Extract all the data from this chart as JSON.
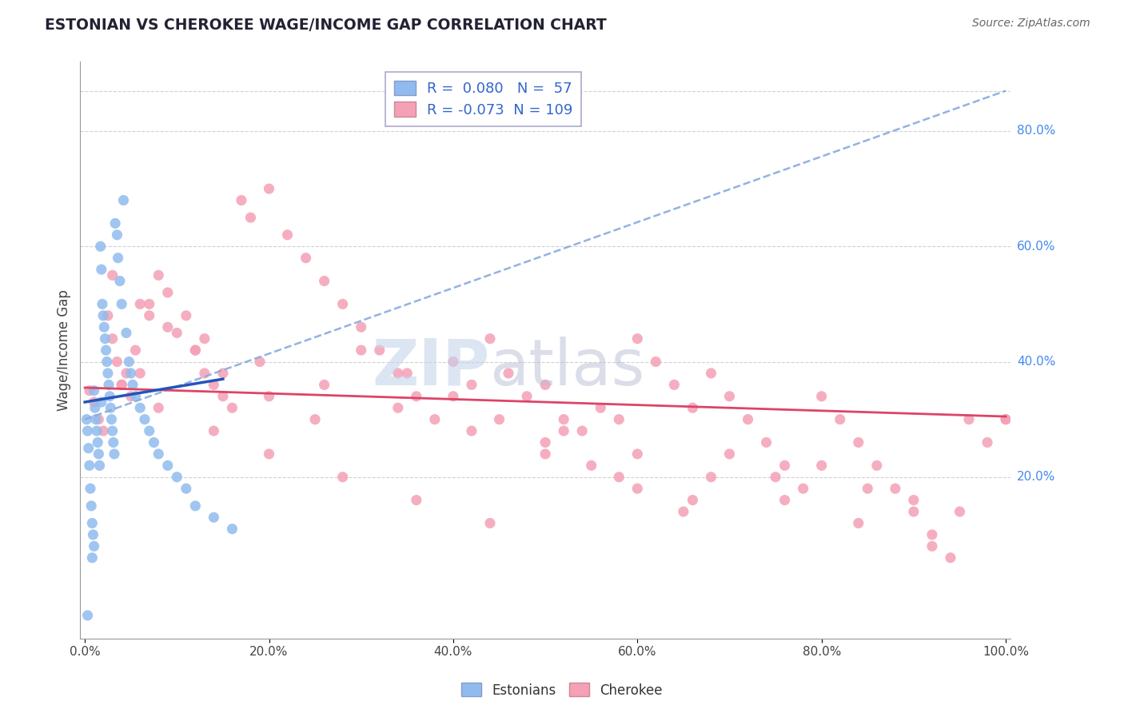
{
  "title": "ESTONIAN VS CHEROKEE WAGE/INCOME GAP CORRELATION CHART",
  "source": "Source: ZipAtlas.com",
  "ylabel": "Wage/Income Gap",
  "xlim": [
    -0.005,
    1.005
  ],
  "ylim": [
    -0.08,
    0.92
  ],
  "xticks": [
    0.0,
    0.2,
    0.4,
    0.6,
    0.8,
    1.0
  ],
  "xtick_labels": [
    "0.0%",
    "20.0%",
    "40.0%",
    "60.0%",
    "80.0%",
    "100.0%"
  ],
  "ytick_vals_right": [
    0.2,
    0.4,
    0.6,
    0.8
  ],
  "ytick_labels_right": [
    "20.0%",
    "40.0%",
    "60.0%",
    "80.0%"
  ],
  "grid_color": "#cccccc",
  "background_color": "#ffffff",
  "estonian_color": "#90bbee",
  "cherokee_color": "#f4a0b5",
  "trend_blue_dashed_color": "#88aadd",
  "trend_blue_solid_color": "#2255bb",
  "trend_pink_color": "#dd4466",
  "R_estonian": 0.08,
  "N_estonian": 57,
  "R_cherokee": -0.073,
  "N_cherokee": 109,
  "est_x": [
    0.002,
    0.003,
    0.004,
    0.005,
    0.006,
    0.007,
    0.008,
    0.009,
    0.01,
    0.01,
    0.011,
    0.012,
    0.013,
    0.014,
    0.015,
    0.016,
    0.017,
    0.018,
    0.018,
    0.019,
    0.02,
    0.021,
    0.022,
    0.023,
    0.024,
    0.025,
    0.026,
    0.027,
    0.028,
    0.029,
    0.03,
    0.031,
    0.032,
    0.033,
    0.035,
    0.036,
    0.038,
    0.04,
    0.042,
    0.045,
    0.048,
    0.05,
    0.052,
    0.055,
    0.06,
    0.065,
    0.07,
    0.075,
    0.08,
    0.09,
    0.1,
    0.11,
    0.12,
    0.14,
    0.16,
    0.003,
    0.008
  ],
  "est_y": [
    0.3,
    0.28,
    0.25,
    0.22,
    0.18,
    0.15,
    0.12,
    0.1,
    0.08,
    0.35,
    0.32,
    0.3,
    0.28,
    0.26,
    0.24,
    0.22,
    0.6,
    0.56,
    0.33,
    0.5,
    0.48,
    0.46,
    0.44,
    0.42,
    0.4,
    0.38,
    0.36,
    0.34,
    0.32,
    0.3,
    0.28,
    0.26,
    0.24,
    0.64,
    0.62,
    0.58,
    0.54,
    0.5,
    0.68,
    0.45,
    0.4,
    0.38,
    0.36,
    0.34,
    0.32,
    0.3,
    0.28,
    0.26,
    0.24,
    0.22,
    0.2,
    0.18,
    0.15,
    0.13,
    0.11,
    -0.04,
    0.06
  ],
  "cher_x": [
    0.005,
    0.01,
    0.015,
    0.02,
    0.025,
    0.03,
    0.035,
    0.04,
    0.045,
    0.05,
    0.055,
    0.06,
    0.07,
    0.08,
    0.09,
    0.1,
    0.11,
    0.12,
    0.13,
    0.14,
    0.15,
    0.16,
    0.17,
    0.18,
    0.2,
    0.22,
    0.24,
    0.26,
    0.28,
    0.3,
    0.32,
    0.34,
    0.36,
    0.38,
    0.4,
    0.42,
    0.44,
    0.46,
    0.48,
    0.5,
    0.52,
    0.54,
    0.56,
    0.58,
    0.6,
    0.62,
    0.64,
    0.66,
    0.68,
    0.7,
    0.72,
    0.74,
    0.76,
    0.78,
    0.8,
    0.82,
    0.84,
    0.86,
    0.88,
    0.9,
    0.92,
    0.94,
    0.96,
    0.98,
    1.0,
    0.03,
    0.06,
    0.09,
    0.12,
    0.15,
    0.2,
    0.25,
    0.3,
    0.35,
    0.4,
    0.45,
    0.5,
    0.55,
    0.6,
    0.65,
    0.7,
    0.75,
    0.8,
    0.85,
    0.9,
    0.95,
    0.04,
    0.08,
    0.14,
    0.2,
    0.28,
    0.36,
    0.44,
    0.52,
    0.6,
    0.68,
    0.76,
    0.84,
    0.92,
    1.0,
    0.07,
    0.13,
    0.19,
    0.26,
    0.34,
    0.42,
    0.5,
    0.58,
    0.66
  ],
  "cher_y": [
    0.35,
    0.33,
    0.3,
    0.28,
    0.48,
    0.44,
    0.4,
    0.36,
    0.38,
    0.34,
    0.42,
    0.38,
    0.5,
    0.55,
    0.52,
    0.45,
    0.48,
    0.42,
    0.38,
    0.36,
    0.34,
    0.32,
    0.68,
    0.65,
    0.7,
    0.62,
    0.58,
    0.54,
    0.5,
    0.46,
    0.42,
    0.38,
    0.34,
    0.3,
    0.4,
    0.36,
    0.44,
    0.38,
    0.34,
    0.36,
    0.3,
    0.28,
    0.32,
    0.3,
    0.44,
    0.4,
    0.36,
    0.32,
    0.38,
    0.34,
    0.3,
    0.26,
    0.22,
    0.18,
    0.34,
    0.3,
    0.26,
    0.22,
    0.18,
    0.14,
    0.1,
    0.06,
    0.3,
    0.26,
    0.3,
    0.55,
    0.5,
    0.46,
    0.42,
    0.38,
    0.34,
    0.3,
    0.42,
    0.38,
    0.34,
    0.3,
    0.26,
    0.22,
    0.18,
    0.14,
    0.24,
    0.2,
    0.22,
    0.18,
    0.16,
    0.14,
    0.36,
    0.32,
    0.28,
    0.24,
    0.2,
    0.16,
    0.12,
    0.28,
    0.24,
    0.2,
    0.16,
    0.12,
    0.08,
    0.3,
    0.48,
    0.44,
    0.4,
    0.36,
    0.32,
    0.28,
    0.24,
    0.2,
    0.16
  ]
}
